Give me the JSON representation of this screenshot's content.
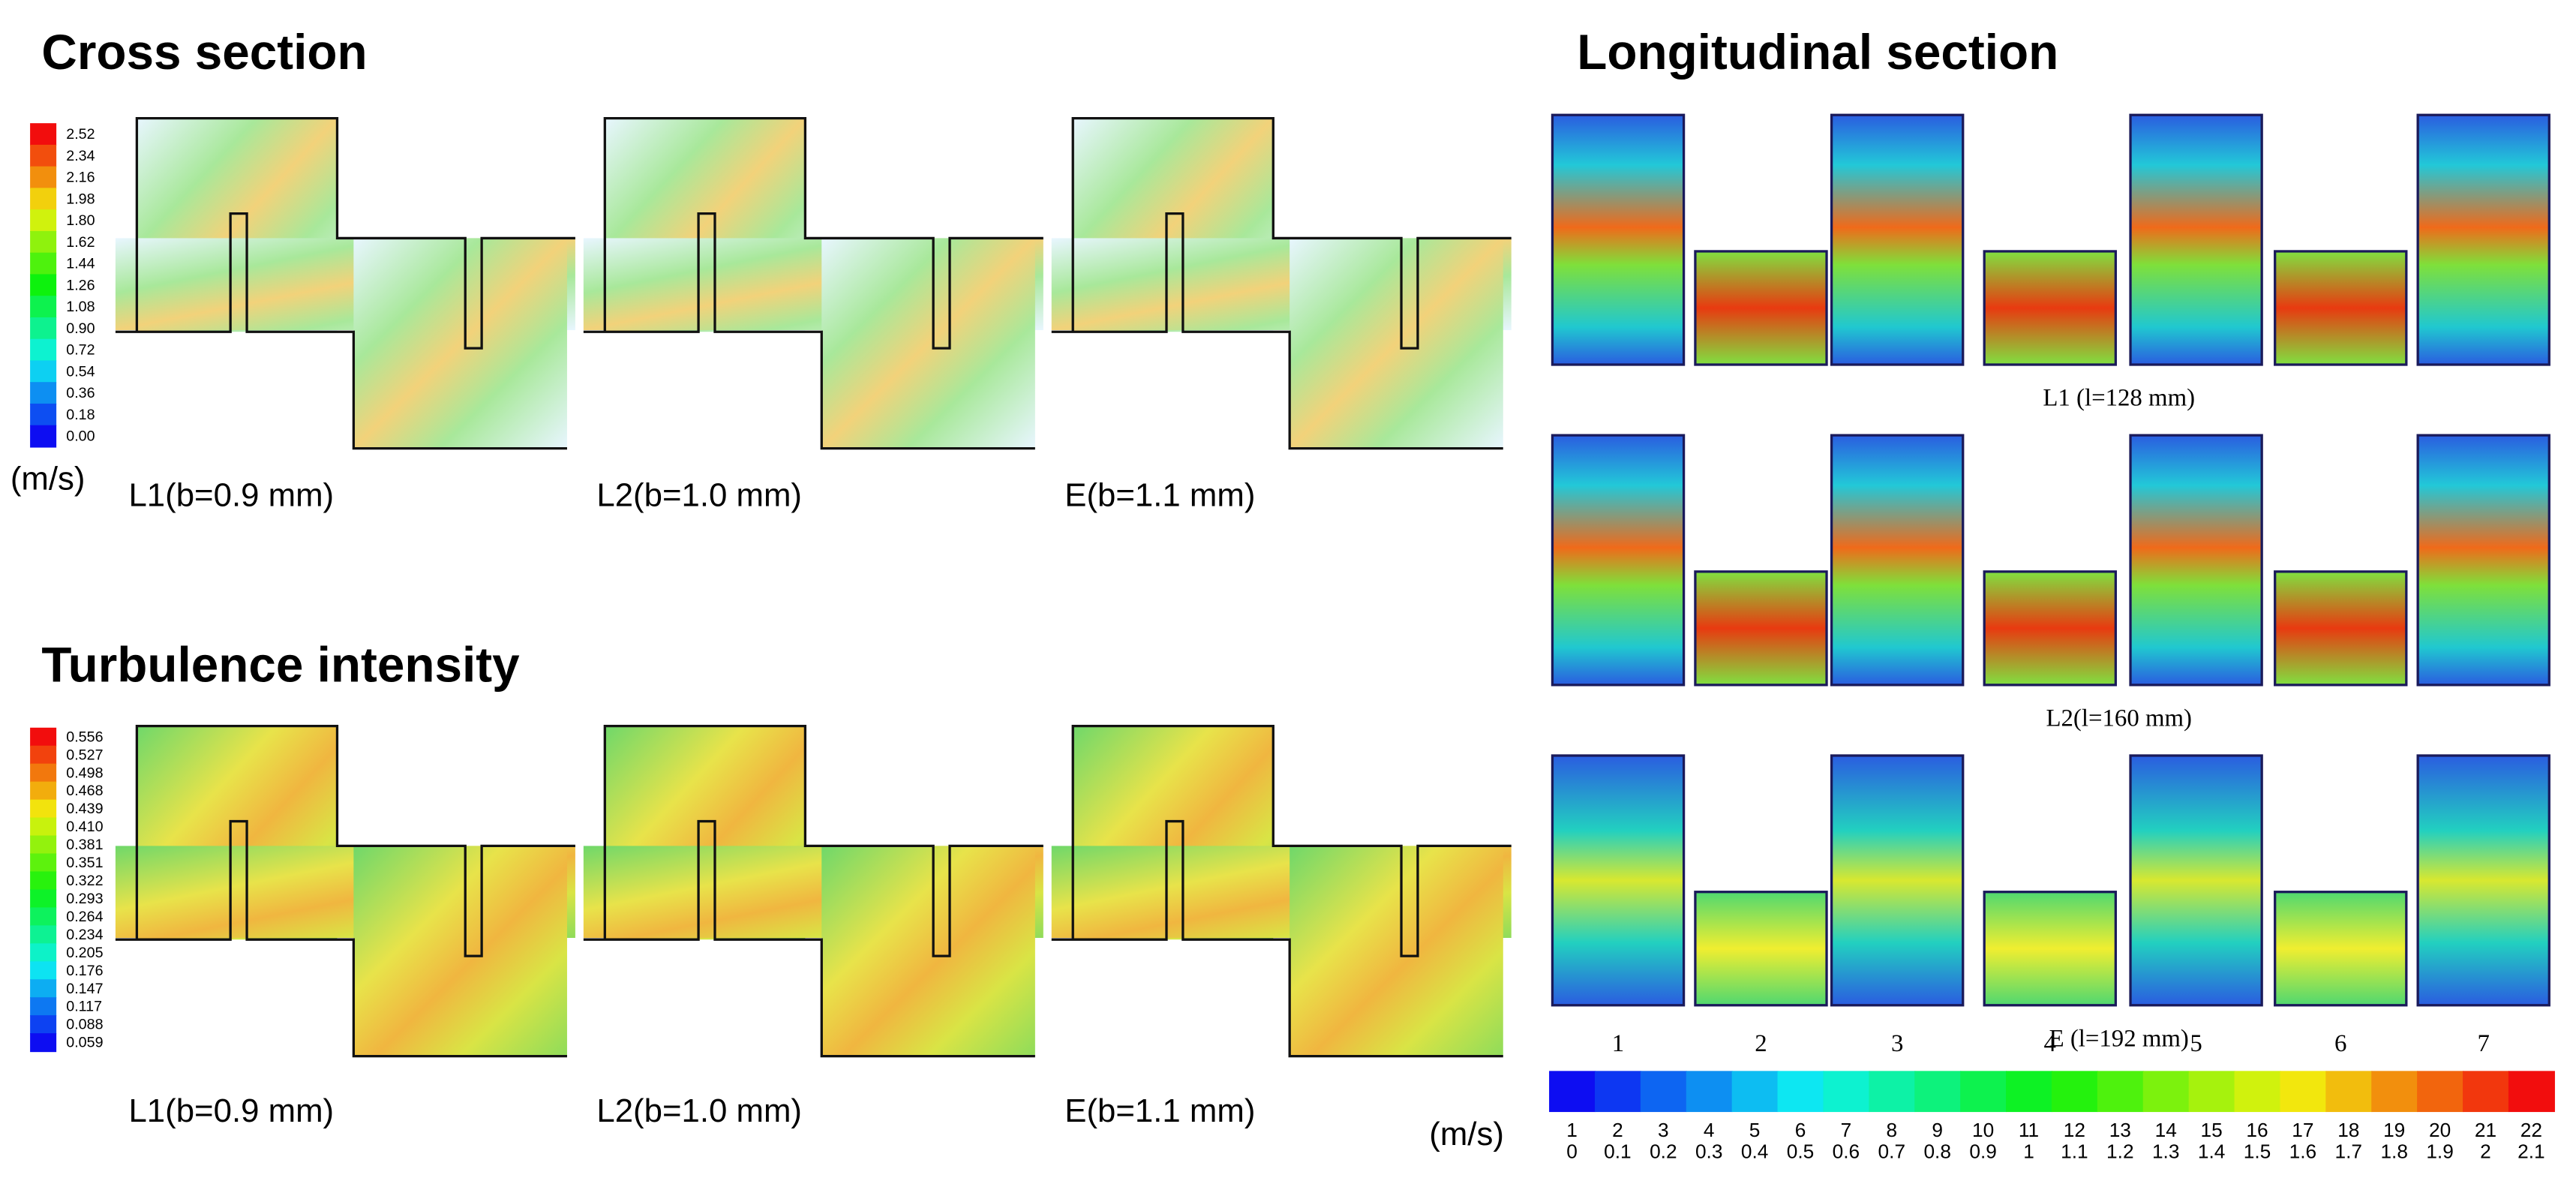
{
  "cross_section": {
    "title": "Cross section",
    "colorbar": {
      "labels": [
        "2.52",
        "2.34",
        "2.16",
        "1.98",
        "1.80",
        "1.62",
        "1.44",
        "1.26",
        "1.08",
        "0.90",
        "0.72",
        "0.54",
        "0.36",
        "0.18",
        "0.00"
      ],
      "unit": "(m/s)"
    },
    "panels": [
      "L1(b=0.9 mm)",
      "L2(b=1.0 mm)",
      "E(b=1.1 mm)"
    ]
  },
  "turbulence": {
    "title": "Turbulence intensity",
    "colorbar": {
      "labels": [
        "0.556",
        "0.527",
        "0.498",
        "0.468",
        "0.439",
        "0.410",
        "0.381",
        "0.351",
        "0.322",
        "0.293",
        "0.264",
        "0.234",
        "0.205",
        "0.176",
        "0.147",
        "0.117",
        "0.088",
        "0.059"
      ]
    },
    "panels": [
      "L1(b=0.9 mm)",
      "L2(b=1.0 mm)",
      "E(b=1.1 mm)"
    ]
  },
  "longitudinal": {
    "title": "Longitudinal section",
    "rows": [
      "L1 (l=128 mm)",
      "L2(l=160 mm)",
      "E (l=192 mm)"
    ],
    "columns": [
      "1",
      "2",
      "3",
      "4",
      "5",
      "6",
      "7"
    ],
    "colorbar": {
      "unit": "(m/s)",
      "levels": [
        "1",
        "2",
        "3",
        "4",
        "5",
        "6",
        "7",
        "8",
        "9",
        "10",
        "11",
        "12",
        "13",
        "14",
        "15",
        "16",
        "17",
        "18",
        "19",
        "20",
        "21",
        "22"
      ],
      "values": [
        "0",
        "0.1",
        "0.2",
        "0.3",
        "0.4",
        "0.5",
        "0.6",
        "0.7",
        "0.8",
        "0.9",
        "1",
        "1.1",
        "1.2",
        "1.3",
        "1.4",
        "1.5",
        "1.6",
        "1.7",
        "1.8",
        "1.9",
        "2",
        "2.1"
      ]
    }
  }
}
